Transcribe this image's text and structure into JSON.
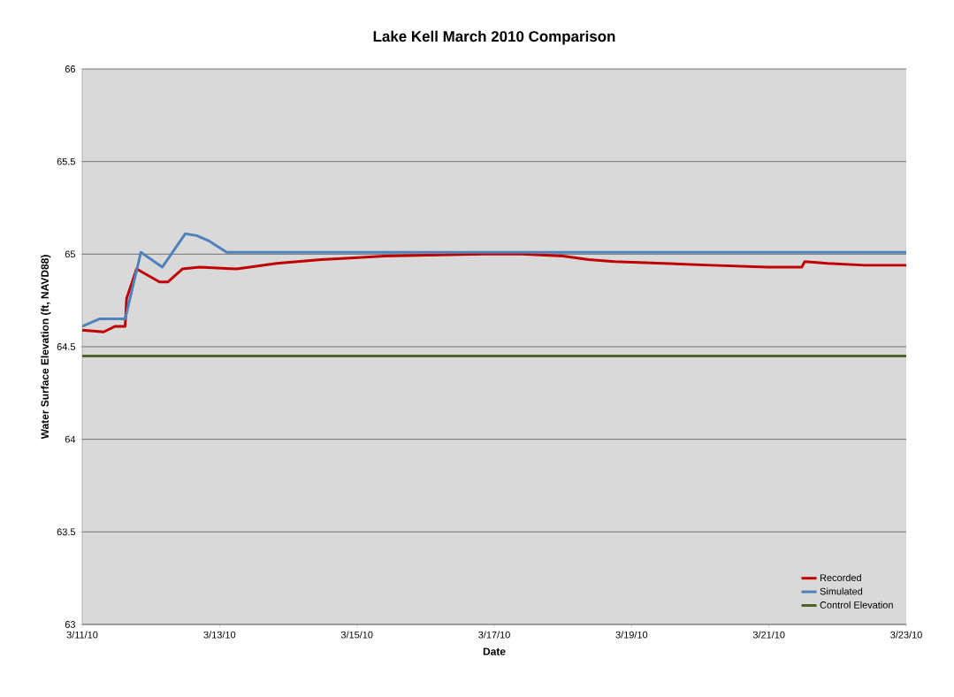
{
  "chart_data": {
    "type": "line",
    "title": "Lake Kell March 2010 Comparison",
    "xlabel": "Date",
    "ylabel": "Water Surface Elevation (ft, NAVD88)",
    "series": [
      {
        "name": "Recorded",
        "color": "#c00000",
        "x": [
          "2010-03-11T00:00",
          "2010-03-11T07:30",
          "2010-03-11T11:30",
          "2010-03-11T15:00",
          "2010-03-11T15:30",
          "2010-03-11T19:00",
          "2010-03-12T03:00",
          "2010-03-12T06:00",
          "2010-03-12T11:00",
          "2010-03-12T17:00",
          "2010-03-13T06:00",
          "2010-03-13T20:00",
          "2010-03-14T11:30",
          "2010-03-14T23:00",
          "2010-03-15T09:30",
          "2010-03-16T20:30",
          "2010-03-17T09:30",
          "2010-03-18T00:00",
          "2010-03-18T09:00",
          "2010-03-18T18:00",
          "2010-03-19T11:00",
          "2010-03-20T04:00",
          "2010-03-20T23:30",
          "2010-03-21T11:30",
          "2010-03-21T12:30",
          "2010-03-21T20:30",
          "2010-03-22T09:30",
          "2010-03-23T00:00"
        ],
        "values": [
          64.59,
          64.58,
          64.61,
          64.61,
          64.76,
          64.92,
          64.85,
          64.85,
          64.92,
          64.93,
          64.92,
          64.95,
          64.97,
          64.98,
          64.99,
          65.0,
          65.0,
          64.99,
          64.97,
          64.96,
          64.95,
          64.94,
          64.93,
          64.93,
          64.96,
          64.95,
          64.94,
          64.94
        ]
      },
      {
        "name": "Simulated",
        "color": "#4f81bd",
        "x": [
          "2010-03-11T00:00",
          "2010-03-11T06:00",
          "2010-03-11T15:00",
          "2010-03-11T20:30",
          "2010-03-12T04:00",
          "2010-03-12T12:00",
          "2010-03-12T16:00",
          "2010-03-12T20:30",
          "2010-03-13T02:30",
          "2010-03-23T00:00"
        ],
        "values": [
          64.61,
          64.65,
          64.65,
          65.01,
          64.93,
          65.11,
          65.1,
          65.07,
          65.01,
          65.01
        ]
      },
      {
        "name": "Control Elevation",
        "color": "#4f6228",
        "x": [
          "2010-03-11T00:00",
          "2010-03-23T00:00"
        ],
        "values": [
          64.45,
          64.45
        ]
      }
    ],
    "xlim": [
      "2010-03-11",
      "2010-03-23"
    ],
    "xticks": [
      {
        "value": "2010-03-11",
        "label": "3/11/10"
      },
      {
        "value": "2010-03-13",
        "label": "3/13/10"
      },
      {
        "value": "2010-03-15",
        "label": "3/15/10"
      },
      {
        "value": "2010-03-17",
        "label": "3/17/10"
      },
      {
        "value": "2010-03-19",
        "label": "3/19/10"
      },
      {
        "value": "2010-03-21",
        "label": "3/21/10"
      },
      {
        "value": "2010-03-23",
        "label": "3/23/10"
      }
    ],
    "ylim": [
      63,
      66
    ],
    "yticks": [
      63,
      63.5,
      64,
      64.5,
      65,
      65.5,
      66
    ],
    "grid": "y",
    "legend": "bottom right",
    "marker": "none",
    "line_style": "solid"
  }
}
